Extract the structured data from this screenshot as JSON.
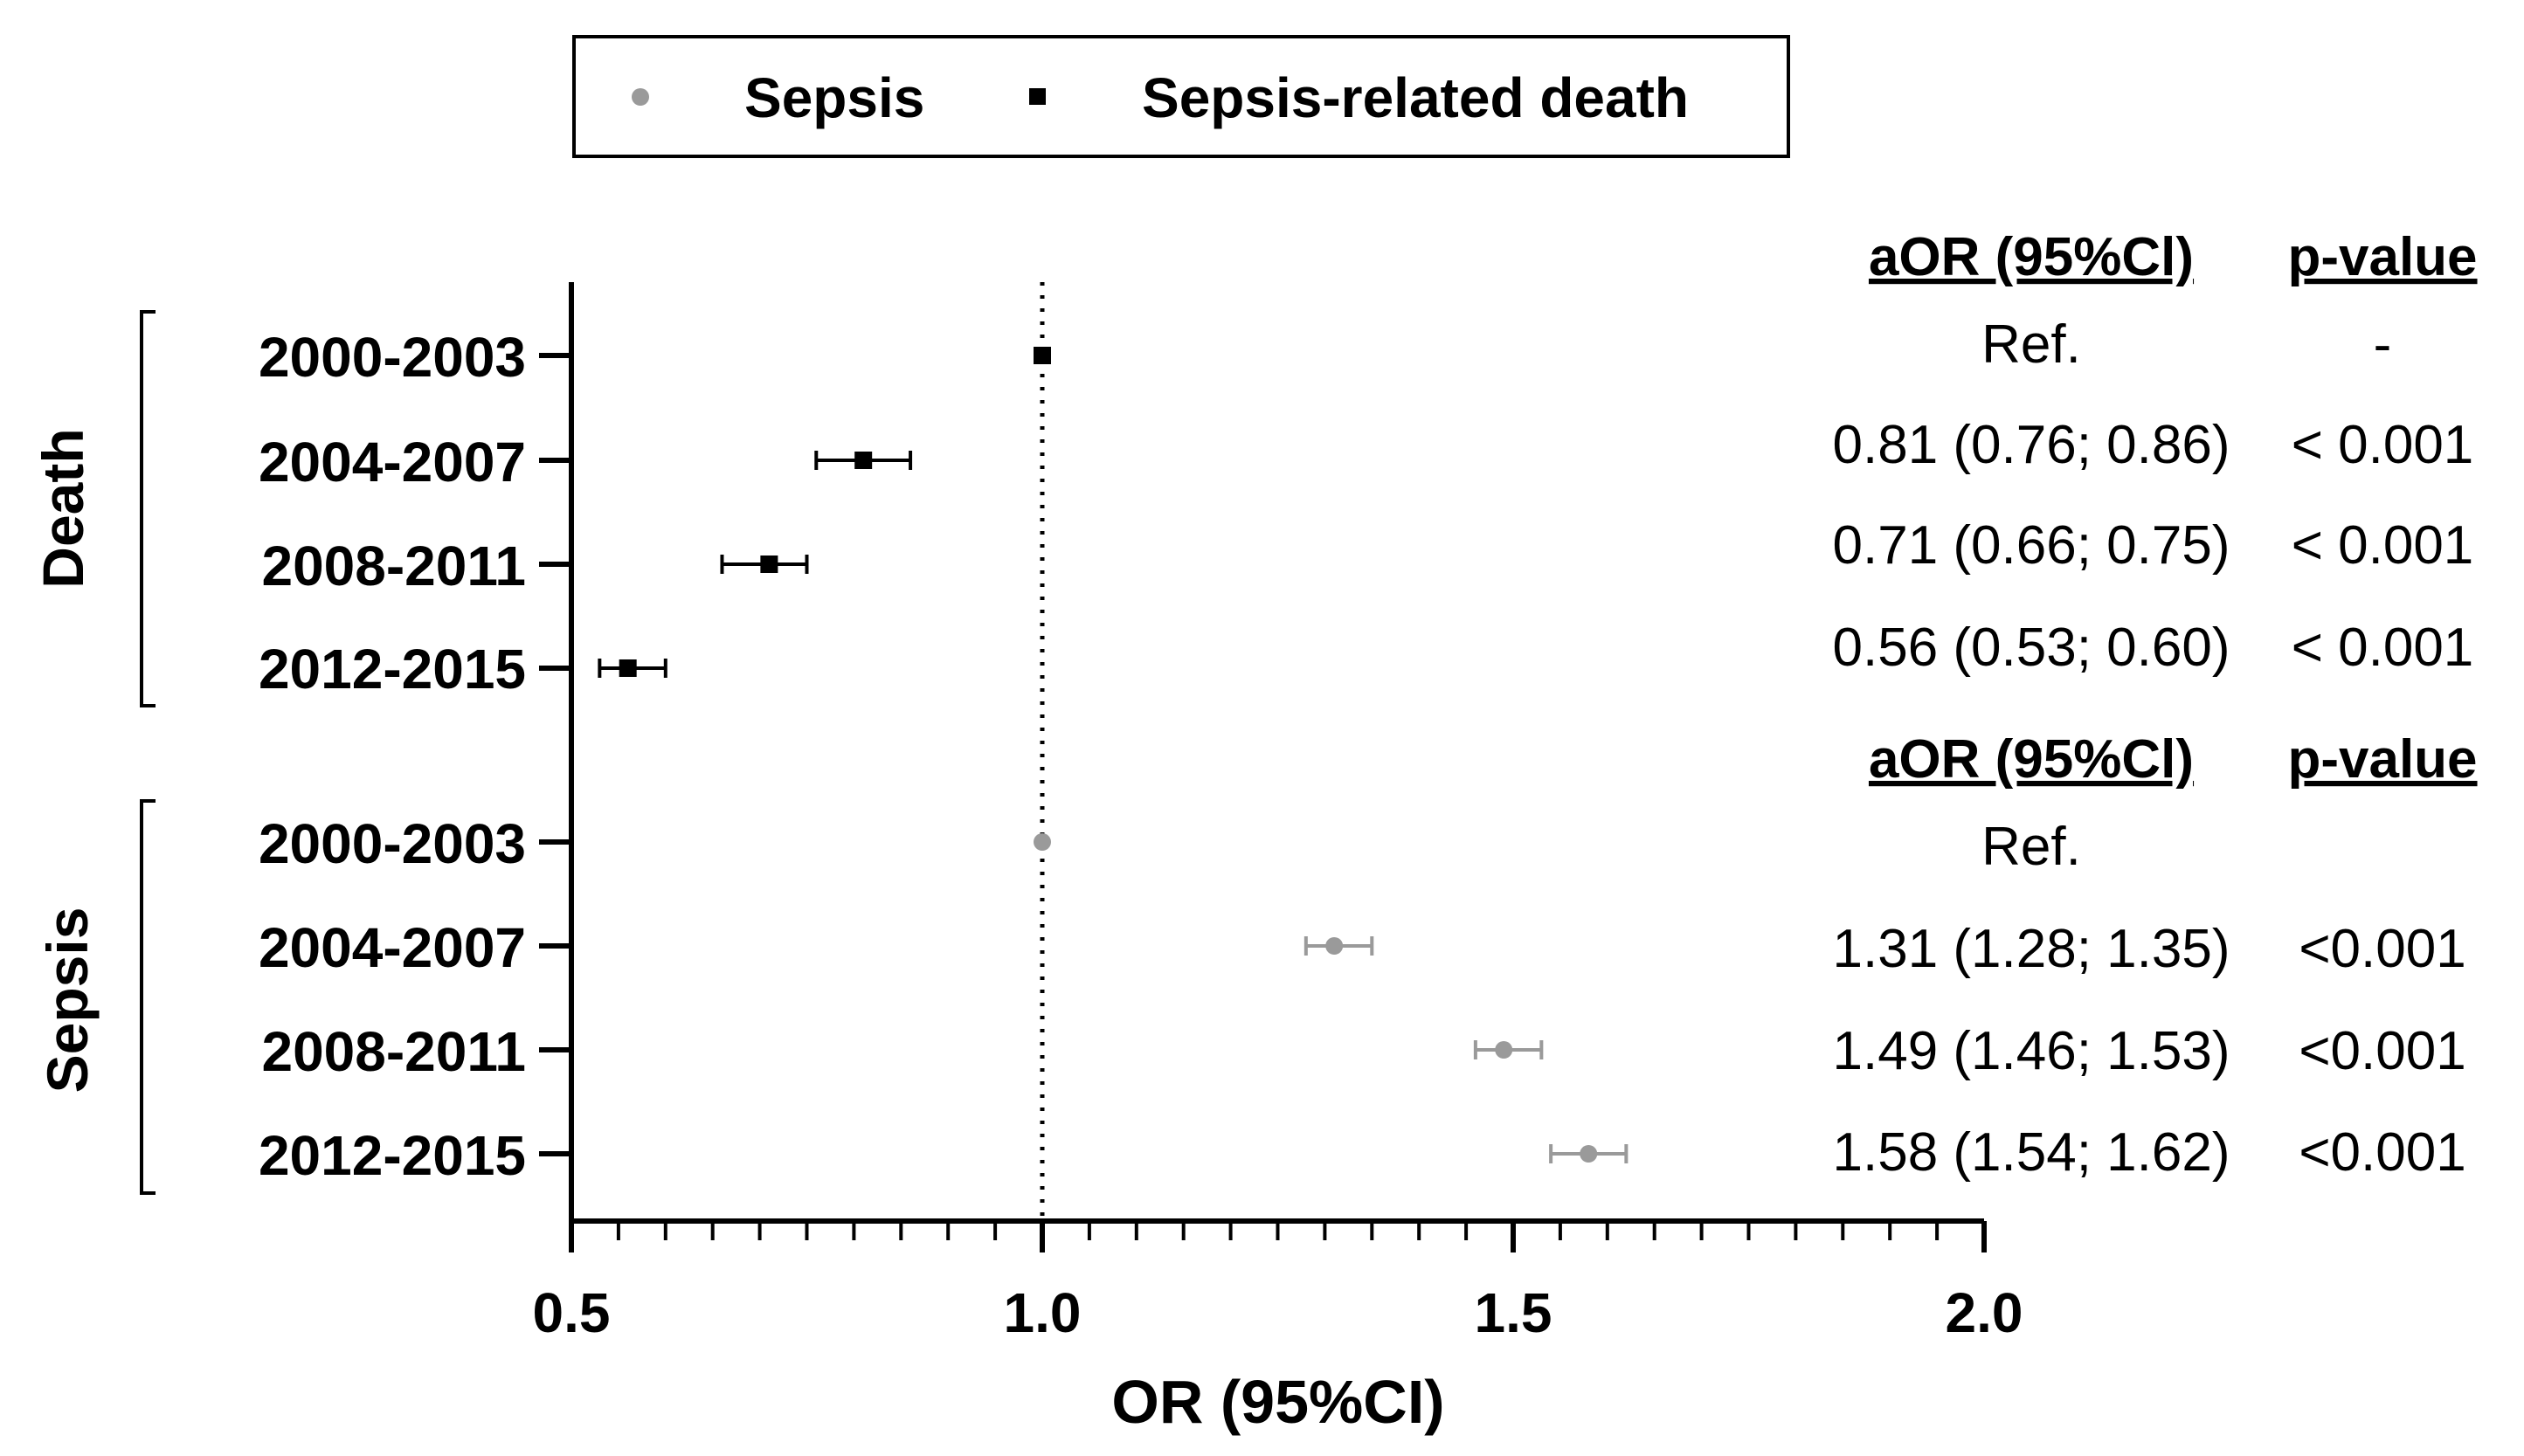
{
  "chart_data": {
    "type": "forest",
    "xlabel": "OR (95%CI)",
    "xlim": [
      0.5,
      2.0
    ],
    "xticks": [
      "0.5",
      "1.0",
      "1.5",
      "2.0"
    ],
    "reference_line": 1.0,
    "legend": [
      {
        "name": "Sepsis",
        "marker": "circle",
        "color": "#9a9a9a"
      },
      {
        "name": "Sepsis-related death",
        "marker": "square",
        "color": "#000000"
      }
    ],
    "groups": [
      {
        "name": "Death",
        "series": "Sepsis-related death",
        "header": {
          "aor": "aOR (95%Cl)",
          "p": "p-value"
        },
        "rows": [
          {
            "period": "2000-2003",
            "or": 1.0,
            "low": 1.0,
            "high": 1.0,
            "aor_text": "Ref.",
            "p_text": "-"
          },
          {
            "period": "2004-2007",
            "or": 0.81,
            "low": 0.76,
            "high": 0.86,
            "aor_text": "0.81 (0.76; 0.86)",
            "p_text": "< 0.001"
          },
          {
            "period": "2008-2011",
            "or": 0.71,
            "low": 0.66,
            "high": 0.75,
            "aor_text": "0.71 (0.66; 0.75)",
            "p_text": "< 0.001"
          },
          {
            "period": "2012-2015",
            "or": 0.56,
            "low": 0.53,
            "high": 0.6,
            "aor_text": "0.56 (0.53; 0.60)",
            "p_text": "< 0.001"
          }
        ]
      },
      {
        "name": "Sepsis",
        "series": "Sepsis",
        "header": {
          "aor": "aOR (95%Cl)",
          "p": "p-value"
        },
        "rows": [
          {
            "period": "2000-2003",
            "or": 1.0,
            "low": 1.0,
            "high": 1.0,
            "aor_text": "Ref.",
            "p_text": ""
          },
          {
            "period": "2004-2007",
            "or": 1.31,
            "low": 1.28,
            "high": 1.35,
            "aor_text": "1.31 (1.28; 1.35)",
            "p_text": "<0.001"
          },
          {
            "period": "2008-2011",
            "or": 1.49,
            "low": 1.46,
            "high": 1.53,
            "aor_text": "1.49 (1.46; 1.53)",
            "p_text": "<0.001"
          },
          {
            "period": "2012-2015",
            "or": 1.58,
            "low": 1.54,
            "high": 1.62,
            "aor_text": "1.58 (1.54; 1.62)",
            "p_text": "<0.001"
          }
        ]
      }
    ]
  }
}
